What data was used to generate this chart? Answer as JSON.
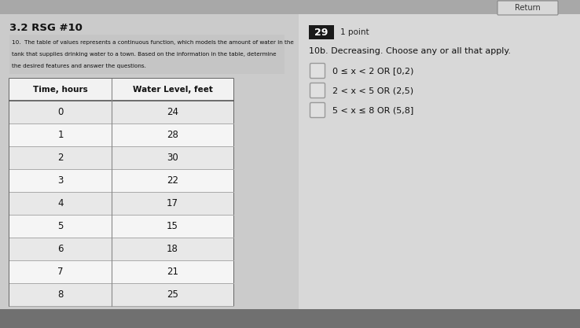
{
  "title": "3.2 RSG #10",
  "question_text": [
    "10.  The table of values represents a continuous function, which models the amount of water in the",
    "tank that supplies drinking water to a town. Based on the information in the table, determine",
    "the desired features and answer the questions."
  ],
  "table_headers": [
    "Time, hours",
    "Water Level, feet"
  ],
  "table_data": [
    [
      0,
      24
    ],
    [
      1,
      28
    ],
    [
      2,
      30
    ],
    [
      3,
      22
    ],
    [
      4,
      17
    ],
    [
      5,
      15
    ],
    [
      6,
      18
    ],
    [
      7,
      21
    ],
    [
      8,
      25
    ]
  ],
  "badge_number": "29",
  "badge_label": "1 point",
  "right_title": "10b. Decreasing. Choose any or all that apply.",
  "choices": [
    "0 ≤ x < 2 OR [0,2)",
    "2 < x < 5 OR (2,5)",
    "5 < x ≤ 8 OR (5,8]"
  ],
  "bg_top": "#b8b8b8",
  "bg_main": "#d0d0d0",
  "bg_bottom": "#888888",
  "panel_left_color": "#c8c8c8",
  "panel_right_color": "#e8e8e8",
  "table_row_even": "#e8e8e8",
  "table_row_odd": "#f5f5f5",
  "table_header_bg": "#f0f0f0",
  "badge_bg": "#1a1a1a",
  "badge_text_color": "#ffffff",
  "return_btn_color": "#d8d8d8",
  "button_text": "Return",
  "top_bar_color": "#a0a0a0",
  "divider_color": "#888888"
}
